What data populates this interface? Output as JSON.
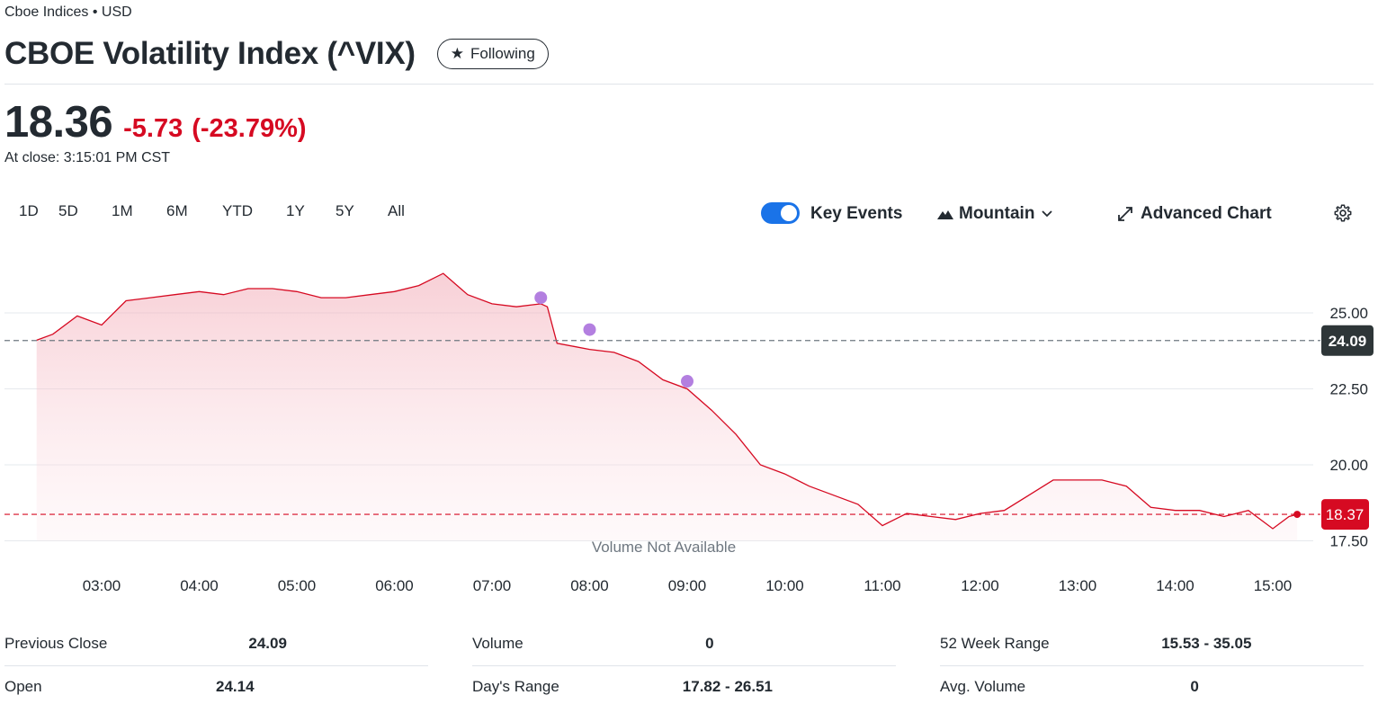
{
  "quote": {
    "exchange": "Cboe Indices • USD",
    "title": "CBOE Volatility Index (^VIX)",
    "follow_label": "Following",
    "price": "18.36",
    "change": "-5.73",
    "change_pct": "(-23.79%)",
    "close_time": "At close: 3:15:01 PM CST"
  },
  "toolbar": {
    "ranges": [
      "1D",
      "5D",
      "1M",
      "6M",
      "YTD",
      "1Y",
      "5Y",
      "All"
    ],
    "key_events_label": "Key Events",
    "key_events_on": true,
    "chart_type_label": "Mountain",
    "advanced_label": "Advanced Chart"
  },
  "chart_data": {
    "type": "area",
    "x": [
      "02:20",
      "02:30",
      "02:45",
      "03:00",
      "03:15",
      "03:30",
      "03:45",
      "04:00",
      "04:15",
      "04:30",
      "04:45",
      "05:00",
      "05:15",
      "05:30",
      "05:45",
      "06:00",
      "06:15",
      "06:30",
      "06:45",
      "07:00",
      "07:15",
      "07:30",
      "07:34",
      "07:40",
      "07:50",
      "08:00",
      "08:15",
      "08:30",
      "08:45",
      "09:00",
      "09:15",
      "09:30",
      "09:45",
      "10:00",
      "10:15",
      "10:30",
      "10:45",
      "11:00",
      "11:15",
      "11:30",
      "11:45",
      "12:00",
      "12:15",
      "12:30",
      "12:45",
      "13:00",
      "13:15",
      "13:30",
      "13:45",
      "14:00",
      "14:15",
      "14:30",
      "14:45",
      "15:00",
      "15:10",
      "15:15"
    ],
    "values": [
      24.1,
      24.3,
      24.9,
      24.6,
      25.4,
      25.5,
      25.6,
      25.7,
      25.6,
      25.8,
      25.8,
      25.7,
      25.5,
      25.5,
      25.6,
      25.7,
      25.9,
      26.3,
      25.6,
      25.3,
      25.2,
      25.3,
      25.2,
      24.0,
      23.9,
      23.8,
      23.7,
      23.4,
      22.8,
      22.5,
      21.8,
      21.0,
      20.0,
      19.7,
      19.3,
      19.0,
      18.7,
      18.0,
      18.4,
      18.3,
      18.2,
      18.4,
      18.5,
      19.0,
      19.5,
      19.5,
      19.5,
      19.3,
      18.6,
      18.5,
      18.5,
      18.3,
      18.5,
      17.9,
      18.3,
      18.37
    ],
    "x_ticks": [
      "03:00",
      "04:00",
      "05:00",
      "06:00",
      "07:00",
      "08:00",
      "09:00",
      "10:00",
      "11:00",
      "12:00",
      "13:00",
      "14:00",
      "15:00"
    ],
    "y_ticks": [
      "25.00",
      "22.50",
      "20.00",
      "17.50"
    ],
    "ylim": [
      17.2,
      26.7
    ],
    "previous_close": 24.09,
    "previous_close_label": "24.09",
    "last_value_label": "18.37",
    "key_events_x": [
      "07:30",
      "08:00",
      "09:00"
    ],
    "key_events_y": [
      25.5,
      24.45,
      22.75
    ],
    "note": "Volume Not Available",
    "line_color": "#d60a22",
    "event_color": "#b37fe0"
  },
  "stats": [
    {
      "label": "Previous Close",
      "value": "24.09"
    },
    {
      "label": "Volume",
      "value": "0"
    },
    {
      "label": "52 Week Range",
      "value": "15.53 - 35.05"
    },
    {
      "label": "Open",
      "value": "24.14"
    },
    {
      "label": "Day's Range",
      "value": "17.82 - 26.51"
    },
    {
      "label": "Avg. Volume",
      "value": "0"
    }
  ]
}
